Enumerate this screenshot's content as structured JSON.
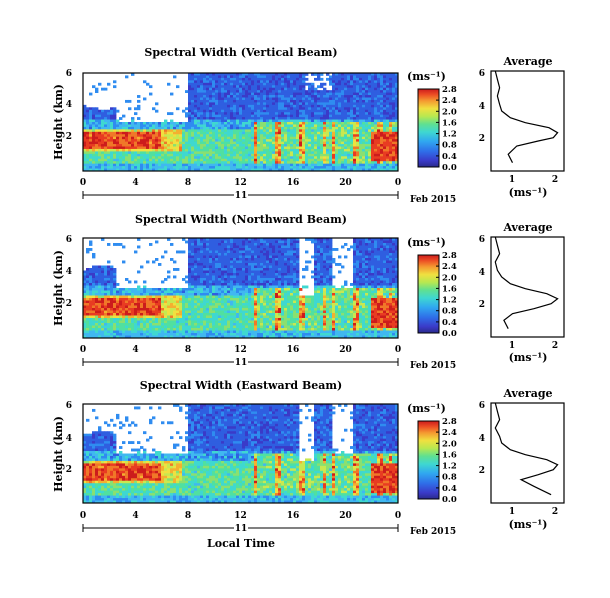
{
  "figure": {
    "xlabel": "Local Time",
    "palette": [
      "#2a2a8a",
      "#3a3ac8",
      "#2f5ee0",
      "#2f8cf0",
      "#40b8f0",
      "#3fd8d0",
      "#50e0a0",
      "#8ae070",
      "#c8e850",
      "#f0e040",
      "#f4b030",
      "#f07828",
      "#e83c22",
      "#cc1c1c"
    ]
  },
  "chart_data": [
    {
      "type": "heatmap",
      "title": "Spectral Width (Vertical Beam)",
      "ylabel": "Height (km)",
      "ylim": [
        0,
        6
      ],
      "yticks": [
        "2",
        "4",
        "6"
      ],
      "xlim": [
        0,
        24
      ],
      "xticks": [
        "0",
        "4",
        "8",
        "12",
        "16",
        "20",
        "0"
      ],
      "day_label": "11",
      "date_label": "Feb 2015",
      "colorbar": {
        "unit": "(ms⁻¹)",
        "range": [
          0.0,
          2.8
        ],
        "ticks": [
          "2.8",
          "2.4",
          "2.0",
          "1.6",
          "1.2",
          "0.8",
          "0.4",
          "0.0"
        ]
      }
    },
    {
      "type": "line",
      "title": "Average",
      "xlabel": "(ms⁻¹)",
      "xticks": [
        "1",
        "2"
      ],
      "xlim": [
        0.5,
        2.2
      ],
      "yticks": [
        "2",
        "4",
        "6"
      ],
      "ylim": [
        0,
        6
      ],
      "x": [
        1.0,
        0.9,
        1.1,
        1.6,
        1.95,
        2.05,
        1.85,
        1.3,
        0.95,
        0.75,
        0.7,
        0.65,
        0.7,
        0.65,
        0.6
      ],
      "y": [
        0.5,
        1.0,
        1.5,
        1.8,
        2.0,
        2.3,
        2.6,
        2.9,
        3.2,
        3.6,
        4.0,
        4.5,
        5.0,
        5.5,
        6.0
      ]
    },
    {
      "type": "heatmap",
      "title": "Spectral Width (Northward Beam)",
      "ylabel": "Height (km)",
      "ylim": [
        0,
        6
      ],
      "yticks": [
        "2",
        "4",
        "6"
      ],
      "xlim": [
        0,
        24
      ],
      "xticks": [
        "0",
        "4",
        "8",
        "12",
        "16",
        "20",
        "0"
      ],
      "day_label": "11",
      "date_label": "Feb 2015",
      "colorbar": {
        "unit": "(ms⁻¹)",
        "range": [
          0.0,
          2.8
        ],
        "ticks": [
          "2.8",
          "2.4",
          "2.0",
          "1.6",
          "1.2",
          "0.8",
          "0.4",
          "0.0"
        ]
      }
    },
    {
      "type": "line",
      "title": "Average",
      "xlabel": "(ms⁻¹)",
      "xticks": [
        "1",
        "2"
      ],
      "xlim": [
        0.5,
        2.2
      ],
      "yticks": [
        "2",
        "4",
        "6"
      ],
      "ylim": [
        0,
        6
      ],
      "x": [
        0.9,
        0.8,
        1.0,
        1.5,
        1.9,
        2.05,
        1.8,
        1.3,
        0.95,
        0.75,
        0.65,
        0.6,
        0.7,
        0.65,
        0.6
      ],
      "y": [
        0.5,
        1.0,
        1.4,
        1.7,
        2.0,
        2.3,
        2.6,
        2.9,
        3.2,
        3.6,
        4.0,
        4.5,
        5.0,
        5.5,
        6.0
      ]
    },
    {
      "type": "heatmap",
      "title": "Spectral Width (Eastward Beam)",
      "ylabel": "Height (km)",
      "ylim": [
        0,
        6
      ],
      "yticks": [
        "2",
        "4",
        "6"
      ],
      "xlim": [
        0,
        24
      ],
      "xticks": [
        "0",
        "4",
        "8",
        "12",
        "16",
        "20",
        "0"
      ],
      "day_label": "11",
      "date_label": "Feb 2015",
      "colorbar": {
        "unit": "(ms⁻¹)",
        "range": [
          0.0,
          2.8
        ],
        "ticks": [
          "2.8",
          "2.4",
          "2.0",
          "1.6",
          "1.2",
          "0.8",
          "0.4",
          "0.0"
        ]
      }
    },
    {
      "type": "line",
      "title": "Average",
      "xlabel": "(ms⁻¹)",
      "xticks": [
        "1",
        "2"
      ],
      "xlim": [
        0.5,
        2.2
      ],
      "yticks": [
        "2",
        "4",
        "6"
      ],
      "ylim": [
        0,
        6
      ],
      "x": [
        1.9,
        1.5,
        1.2,
        1.6,
        1.95,
        2.05,
        1.8,
        1.3,
        0.95,
        0.75,
        0.7,
        0.6,
        0.7,
        0.65,
        0.6
      ],
      "y": [
        0.5,
        1.0,
        1.4,
        1.7,
        2.0,
        2.3,
        2.6,
        2.9,
        3.2,
        3.6,
        4.0,
        4.5,
        5.0,
        5.5,
        6.0
      ]
    }
  ]
}
